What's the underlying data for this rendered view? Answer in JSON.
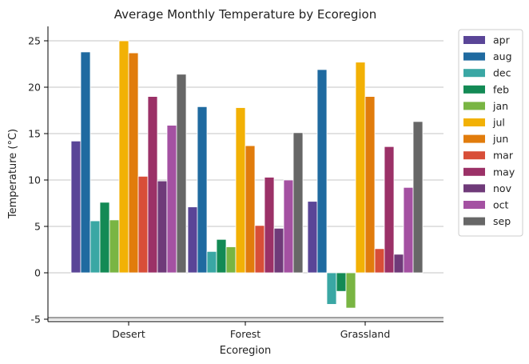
{
  "chart_data": {
    "type": "bar",
    "title": "Average Monthly Temperature by Ecoregion",
    "xlabel": "Ecoregion",
    "ylabel": "Temperature (°C)",
    "categories": [
      "Desert",
      "Forest",
      "Grassland"
    ],
    "ylim": [
      -5.3,
      26.6
    ],
    "yticks": [
      -5,
      0,
      5,
      10,
      15,
      20,
      25
    ],
    "grid": "horizontal",
    "legend_position": "outside-right",
    "series": [
      {
        "name": "apr",
        "color": "#5a4597",
        "values": [
          14.2,
          7.1,
          7.7
        ]
      },
      {
        "name": "aug",
        "color": "#1f6aa0",
        "values": [
          23.8,
          17.9,
          21.9
        ]
      },
      {
        "name": "dec",
        "color": "#3aa7a4",
        "values": [
          5.6,
          2.3,
          -3.4
        ]
      },
      {
        "name": "feb",
        "color": "#138a55",
        "values": [
          7.6,
          3.6,
          -2.0
        ]
      },
      {
        "name": "jan",
        "color": "#79b543",
        "values": [
          5.7,
          2.8,
          -3.8
        ]
      },
      {
        "name": "jul",
        "color": "#f2b105",
        "values": [
          25.0,
          17.8,
          22.7
        ]
      },
      {
        "name": "jun",
        "color": "#e17c0c",
        "values": [
          23.7,
          13.7,
          19.0
        ]
      },
      {
        "name": "mar",
        "color": "#d84e38",
        "values": [
          10.4,
          5.1,
          2.6
        ]
      },
      {
        "name": "may",
        "color": "#9b3167",
        "values": [
          19.0,
          10.3,
          13.6
        ]
      },
      {
        "name": "nov",
        "color": "#6f3a79",
        "values": [
          9.9,
          4.8,
          2.0
        ]
      },
      {
        "name": "oct",
        "color": "#a451a2",
        "values": [
          15.9,
          10.0,
          9.2
        ]
      },
      {
        "name": "sep",
        "color": "#676767",
        "values": [
          21.4,
          15.1,
          16.3
        ]
      }
    ]
  }
}
